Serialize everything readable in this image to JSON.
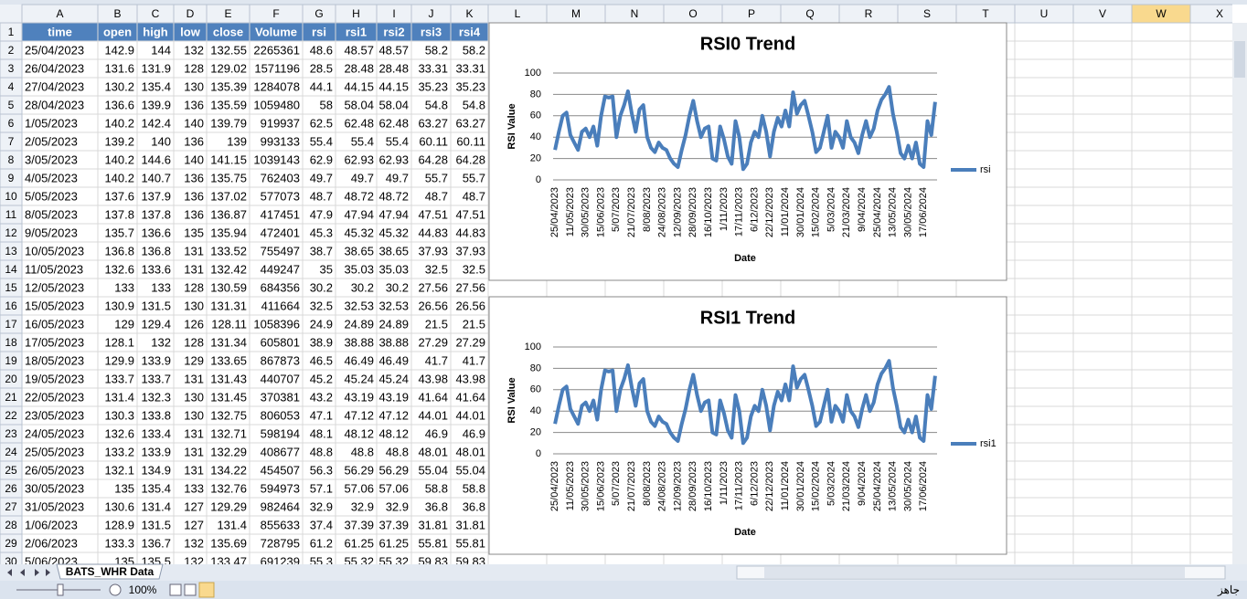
{
  "sheet": {
    "column_letters": [
      "A",
      "B",
      "C",
      "D",
      "E",
      "F",
      "G",
      "H",
      "I",
      "J",
      "K",
      "L",
      "M",
      "N",
      "O",
      "P",
      "Q",
      "R",
      "S",
      "T",
      "U",
      "V",
      "W",
      "X"
    ],
    "row_numbers": [
      1,
      2,
      3,
      4,
      5,
      6,
      7,
      8,
      9,
      10,
      11,
      12,
      13,
      14,
      15,
      16,
      17,
      18,
      19,
      20,
      21,
      22,
      23,
      24,
      25,
      26,
      27,
      28,
      29,
      30
    ],
    "tab": "BATS_WHR Data",
    "zoom": "100%",
    "status": "جاهز"
  },
  "table": {
    "header": [
      "time",
      "open",
      "high",
      "low",
      "close",
      "Volume",
      "rsi",
      "rsi1",
      "rsi2",
      "rsi3",
      "rsi4"
    ],
    "rows": [
      [
        "25/04/2023",
        142.9,
        144,
        132,
        132.55,
        2265361,
        48.6,
        48.57,
        48.57,
        58.2,
        58.2
      ],
      [
        "26/04/2023",
        131.6,
        131.9,
        128,
        129.02,
        1571196,
        28.5,
        28.48,
        28.48,
        33.31,
        33.31
      ],
      [
        "27/04/2023",
        130.2,
        135.4,
        130,
        135.39,
        1284078,
        44.1,
        44.15,
        44.15,
        35.23,
        35.23
      ],
      [
        "28/04/2023",
        136.6,
        139.9,
        136,
        135.59,
        1059480,
        58,
        58.04,
        58.04,
        54.8,
        54.8
      ],
      [
        "1/05/2023",
        140.2,
        142.4,
        140,
        139.79,
        919937,
        62.5,
        62.48,
        62.48,
        63.27,
        63.27
      ],
      [
        "2/05/2023",
        139.2,
        140,
        136,
        139,
        993133,
        55.4,
        55.4,
        55.4,
        60.11,
        60.11
      ],
      [
        "3/05/2023",
        140.2,
        144.6,
        140,
        141.15,
        1039143,
        62.9,
        62.93,
        62.93,
        64.28,
        64.28
      ],
      [
        "4/05/2023",
        140.2,
        140.7,
        136,
        135.75,
        762403,
        49.7,
        49.7,
        49.7,
        55.7,
        55.7
      ],
      [
        "5/05/2023",
        137.6,
        137.9,
        136,
        137.02,
        577073,
        48.7,
        48.72,
        48.72,
        48.7,
        48.7
      ],
      [
        "8/05/2023",
        137.8,
        137.8,
        136,
        136.87,
        417451,
        47.9,
        47.94,
        47.94,
        47.51,
        47.51
      ],
      [
        "9/05/2023",
        135.7,
        136.6,
        135,
        135.94,
        472401,
        45.3,
        45.32,
        45.32,
        44.83,
        44.83
      ],
      [
        "10/05/2023",
        136.8,
        136.8,
        131,
        133.52,
        755497,
        38.7,
        38.65,
        38.65,
        37.93,
        37.93
      ],
      [
        "11/05/2023",
        132.6,
        133.6,
        131,
        132.42,
        449247,
        35,
        35.03,
        35.03,
        32.5,
        32.5
      ],
      [
        "12/05/2023",
        133,
        133,
        128,
        130.59,
        684356,
        30.2,
        30.2,
        30.2,
        27.56,
        27.56
      ],
      [
        "15/05/2023",
        130.9,
        131.5,
        130,
        131.31,
        411664,
        32.5,
        32.53,
        32.53,
        26.56,
        26.56
      ],
      [
        "16/05/2023",
        129,
        129.4,
        126,
        128.11,
        1058396,
        24.9,
        24.89,
        24.89,
        21.5,
        21.5
      ],
      [
        "17/05/2023",
        128.1,
        132,
        128,
        131.34,
        605801,
        38.9,
        38.88,
        38.88,
        27.29,
        27.29
      ],
      [
        "18/05/2023",
        129.9,
        133.9,
        129,
        133.65,
        867873,
        46.5,
        46.49,
        46.49,
        41.7,
        41.7
      ],
      [
        "19/05/2023",
        133.7,
        133.7,
        131,
        131.43,
        440707,
        45.2,
        45.24,
        45.24,
        43.98,
        43.98
      ],
      [
        "22/05/2023",
        131.4,
        132.3,
        130,
        131.45,
        370381,
        43.2,
        43.19,
        43.19,
        41.64,
        41.64
      ],
      [
        "23/05/2023",
        130.3,
        133.8,
        130,
        132.75,
        806053,
        47.1,
        47.12,
        47.12,
        44.01,
        44.01
      ],
      [
        "24/05/2023",
        132.6,
        133.4,
        131,
        132.71,
        598194,
        48.1,
        48.12,
        48.12,
        46.9,
        46.9
      ],
      [
        "25/05/2023",
        133.2,
        133.9,
        131,
        132.29,
        408677,
        48.8,
        48.8,
        48.8,
        48.01,
        48.01
      ],
      [
        "26/05/2023",
        132.1,
        134.9,
        131,
        134.22,
        454507,
        56.3,
        56.29,
        56.29,
        55.04,
        55.04
      ],
      [
        "30/05/2023",
        135,
        135.4,
        133,
        132.76,
        594973,
        57.1,
        57.06,
        57.06,
        58.8,
        58.8
      ],
      [
        "31/05/2023",
        130.6,
        131.4,
        127,
        129.29,
        982464,
        32.9,
        32.9,
        32.9,
        36.8,
        36.8
      ],
      [
        "1/06/2023",
        128.9,
        131.5,
        127,
        131.4,
        855633,
        37.4,
        37.39,
        37.39,
        31.81,
        31.81
      ],
      [
        "2/06/2023",
        133.3,
        136.7,
        132,
        135.69,
        728795,
        61.2,
        61.25,
        61.25,
        55.81,
        55.81
      ],
      [
        "5/06/2023",
        135,
        135.5,
        132,
        133.47,
        691239,
        55.3,
        55.32,
        55.32,
        59.83,
        59.83
      ]
    ]
  },
  "chart_data": [
    {
      "type": "line",
      "title": "RSI0 Trend",
      "x_label": "Date",
      "y_label": "RSI Value",
      "categories": [
        "25/04/2023",
        null,
        null,
        null,
        "11/05/2023",
        null,
        null,
        null,
        "30/05/2023",
        null,
        null,
        null,
        "15/06/2023",
        null,
        null,
        null,
        "5/07/2023",
        null,
        null,
        null,
        "21/07/2023",
        null,
        null,
        null,
        "8/08/2023",
        null,
        null,
        null,
        "24/08/2023",
        null,
        null,
        null,
        "12/09/2023",
        null,
        null,
        null,
        "28/09/2023",
        null,
        null,
        null,
        "16/10/2023",
        null,
        null,
        null,
        "1/11/2023",
        null,
        null,
        null,
        "17/11/2023",
        null,
        null,
        null,
        "6/12/2023",
        null,
        null,
        null,
        "22/12/2023",
        null,
        null,
        null,
        "11/01/2024",
        null,
        null,
        null,
        "30/01/2024",
        null,
        null,
        null,
        "15/02/2024",
        null,
        null,
        null,
        "5/03/2024",
        null,
        null,
        null,
        "21/03/2024",
        null,
        null,
        null,
        "9/04/2024",
        null,
        null,
        null,
        "25/04/2024",
        null,
        null,
        null,
        "13/05/2024",
        null,
        null,
        null,
        "30/05/2024",
        null,
        null,
        null,
        "17/06/2024",
        null,
        null,
        null
      ],
      "series": [
        {
          "name": "rsi",
          "color": "#4a7ebb",
          "values": [
            28,
            45,
            60,
            63,
            42,
            35,
            28,
            45,
            48,
            40,
            50,
            32,
            60,
            78,
            77,
            78,
            40,
            60,
            70,
            83,
            62,
            45,
            66,
            70,
            40,
            30,
            26,
            35,
            30,
            28,
            20,
            15,
            12,
            28,
            42,
            60,
            74,
            55,
            40,
            48,
            50,
            20,
            18,
            50,
            38,
            22,
            15,
            55,
            40,
            10,
            15,
            35,
            45,
            40,
            60,
            45,
            22,
            45,
            58,
            50,
            65,
            50,
            82,
            62,
            70,
            74,
            60,
            45,
            26,
            30,
            45,
            60,
            30,
            45,
            40,
            30,
            55,
            40,
            35,
            25,
            42,
            55,
            40,
            48,
            65,
            75,
            80,
            87,
            62,
            45,
            25,
            20,
            32,
            20,
            35,
            15,
            12,
            55,
            42,
            73
          ]
        }
      ],
      "ylim": [
        0,
        100
      ],
      "yticks": [
        0,
        20,
        40,
        60,
        80,
        100
      ],
      "grid": true,
      "legend": "right"
    },
    {
      "type": "line",
      "title": "RSI1 Trend",
      "x_label": "Date",
      "y_label": "RSI Value",
      "categories": [
        "25/04/2023",
        null,
        null,
        null,
        "11/05/2023",
        null,
        null,
        null,
        "30/05/2023",
        null,
        null,
        null,
        "15/06/2023",
        null,
        null,
        null,
        "5/07/2023",
        null,
        null,
        null,
        "21/07/2023",
        null,
        null,
        null,
        "8/08/2023",
        null,
        null,
        null,
        "24/08/2023",
        null,
        null,
        null,
        "12/09/2023",
        null,
        null,
        null,
        "28/09/2023",
        null,
        null,
        null,
        "16/10/2023",
        null,
        null,
        null,
        "1/11/2023",
        null,
        null,
        null,
        "17/11/2023",
        null,
        null,
        null,
        "6/12/2023",
        null,
        null,
        null,
        "22/12/2023",
        null,
        null,
        null,
        "11/01/2024",
        null,
        null,
        null,
        "30/01/2024",
        null,
        null,
        null,
        "15/02/2024",
        null,
        null,
        null,
        "5/03/2024",
        null,
        null,
        null,
        "21/03/2024",
        null,
        null,
        null,
        "9/04/2024",
        null,
        null,
        null,
        "25/04/2024",
        null,
        null,
        null,
        "13/05/2024",
        null,
        null,
        null,
        "30/05/2024",
        null,
        null,
        null,
        "17/06/2024",
        null,
        null,
        null
      ],
      "series": [
        {
          "name": "rsi1",
          "color": "#4a7ebb",
          "values": [
            28,
            45,
            60,
            63,
            42,
            35,
            28,
            45,
            48,
            40,
            50,
            32,
            60,
            78,
            77,
            78,
            40,
            60,
            70,
            83,
            62,
            45,
            66,
            70,
            40,
            30,
            26,
            35,
            30,
            28,
            20,
            15,
            12,
            28,
            42,
            60,
            74,
            55,
            40,
            48,
            50,
            20,
            18,
            50,
            38,
            22,
            15,
            55,
            40,
            10,
            15,
            35,
            45,
            40,
            60,
            45,
            22,
            45,
            58,
            50,
            65,
            50,
            82,
            62,
            70,
            74,
            60,
            45,
            26,
            30,
            45,
            60,
            30,
            45,
            40,
            30,
            55,
            40,
            35,
            25,
            42,
            55,
            40,
            48,
            65,
            75,
            80,
            87,
            62,
            45,
            25,
            20,
            32,
            20,
            35,
            15,
            12,
            55,
            42,
            73
          ]
        }
      ],
      "ylim": [
        0,
        100
      ],
      "yticks": [
        0,
        20,
        40,
        60,
        80,
        100
      ],
      "grid": true,
      "legend": "right"
    }
  ]
}
